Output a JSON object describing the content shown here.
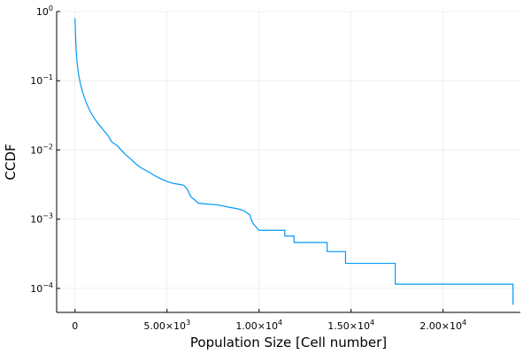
{
  "chart_data": {
    "type": "line",
    "xlabel": "Population Size [Cell number]",
    "ylabel": "CCDF",
    "x_scale": "linear",
    "y_scale": "log10",
    "xlim": [
      -1000,
      24200
    ],
    "ylim": [
      4.5e-05,
      1.0
    ],
    "grid": true,
    "legend": "none",
    "x_ticks": [
      {
        "value": 0,
        "base": "0",
        "exp": ""
      },
      {
        "value": 5000,
        "base": "5.00×10",
        "exp": "3"
      },
      {
        "value": 10000,
        "base": "1.00×10",
        "exp": "4"
      },
      {
        "value": 15000,
        "base": "1.50×10",
        "exp": "4"
      },
      {
        "value": 20000,
        "base": "2.00×10",
        "exp": "4"
      }
    ],
    "y_ticks": [
      {
        "value": 1.0,
        "base": "10",
        "exp": "0"
      },
      {
        "value": 0.1,
        "base": "10",
        "exp": "−1"
      },
      {
        "value": 0.01,
        "base": "10",
        "exp": "−2"
      },
      {
        "value": 0.001,
        "base": "10",
        "exp": "−3"
      },
      {
        "value": 0.0001,
        "base": "10",
        "exp": "−4"
      }
    ],
    "series": [
      {
        "color": "#009AFA",
        "points": [
          [
            0,
            0.8
          ],
          [
            30,
            0.42
          ],
          [
            60,
            0.28
          ],
          [
            100,
            0.2
          ],
          [
            150,
            0.15
          ],
          [
            200,
            0.12
          ],
          [
            300,
            0.088
          ],
          [
            400,
            0.07
          ],
          [
            500,
            0.058
          ],
          [
            600,
            0.049
          ],
          [
            800,
            0.037
          ],
          [
            1000,
            0.03
          ],
          [
            1200,
            0.025
          ],
          [
            1500,
            0.02
          ],
          [
            1800,
            0.016
          ],
          [
            2000,
            0.013
          ],
          [
            2300,
            0.0115
          ],
          [
            2500,
            0.01
          ],
          [
            2700,
            0.0088
          ],
          [
            3000,
            0.0075
          ],
          [
            3300,
            0.0063
          ],
          [
            3600,
            0.0055
          ],
          [
            4000,
            0.0048
          ],
          [
            4300,
            0.0043
          ],
          [
            4600,
            0.0039
          ],
          [
            5000,
            0.0035
          ],
          [
            5300,
            0.0033
          ],
          [
            5600,
            0.0032
          ],
          [
            5900,
            0.0031
          ],
          [
            6100,
            0.0027
          ],
          [
            6300,
            0.0021
          ],
          [
            6500,
            0.0019
          ],
          [
            6700,
            0.0017
          ],
          [
            7200,
            0.00165
          ],
          [
            7800,
            0.0016
          ],
          [
            8300,
            0.0015
          ],
          [
            8800,
            0.00142
          ],
          [
            9200,
            0.00132
          ],
          [
            9500,
            0.00115
          ],
          [
            9600,
            0.00095
          ],
          [
            9700,
            0.00085
          ],
          [
            10000,
            0.00069
          ],
          [
            11400,
            0.00069
          ],
          [
            11400,
            0.00057
          ],
          [
            11900,
            0.00057
          ],
          [
            11900,
            0.00046
          ],
          [
            13700,
            0.00046
          ],
          [
            13700,
            0.00034
          ],
          [
            14700,
            0.00034
          ],
          [
            14700,
            0.00023
          ],
          [
            17400,
            0.00023
          ],
          [
            17400,
            0.000115
          ],
          [
            23800,
            0.000115
          ],
          [
            23800,
            5.8e-05
          ]
        ]
      }
    ]
  }
}
